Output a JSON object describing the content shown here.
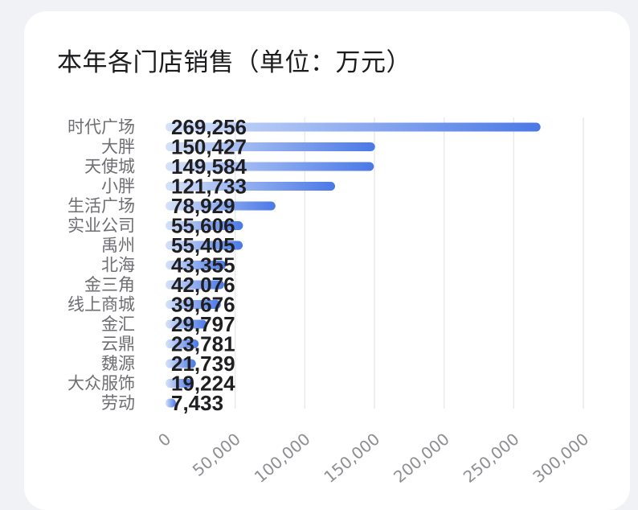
{
  "card": {
    "title": "本年各门店销售（单位：万元）"
  },
  "chart_data": {
    "type": "bar",
    "orientation": "horizontal",
    "title": "本年各门店销售（单位：万元）",
    "categories": [
      "时代广场",
      "大胖",
      "天使城",
      "小胖",
      "生活广场",
      "实业公司",
      "禹州",
      "北海",
      "金三角",
      "线上商城",
      "金汇",
      "云鼎",
      "魏源",
      "大众服饰",
      "劳动"
    ],
    "values": [
      269256,
      150427,
      149584,
      121733,
      78929,
      55606,
      55405,
      43355,
      42076,
      39676,
      29797,
      23781,
      21739,
      19224,
      7433
    ],
    "value_labels": [
      "269,256",
      "150,427",
      "149,584",
      "121,733",
      "78,929",
      "55,606",
      "55,405",
      "43,355",
      "42,076",
      "39,676",
      "29,797",
      "23,781",
      "21,739",
      "19,224",
      "7,433"
    ],
    "xlim": [
      0,
      300000
    ],
    "xticks": [
      "0",
      "50,000",
      "100,000",
      "150,000",
      "200,000",
      "250,000",
      "300,000"
    ],
    "grid": "vertical",
    "colors": {
      "bar_start": "#d6e2fa",
      "bar_end": "#4a78e6"
    }
  }
}
